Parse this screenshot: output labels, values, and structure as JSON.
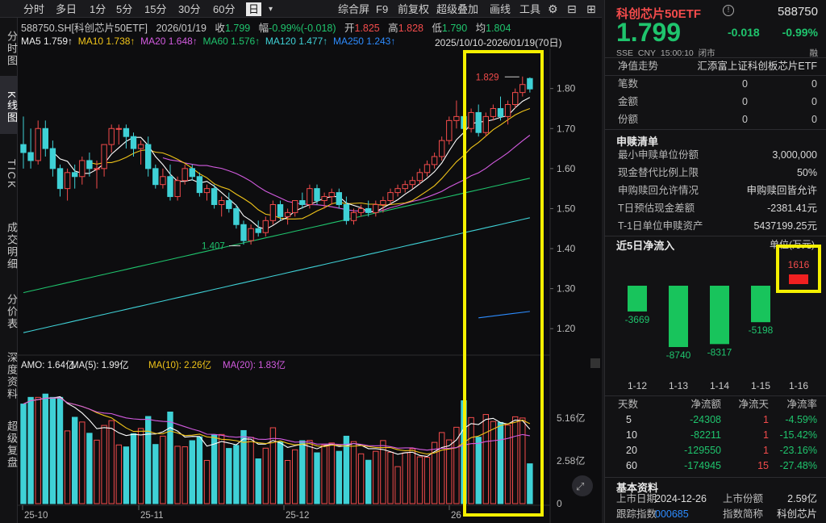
{
  "topbar": {
    "tabs": [
      "分时",
      "多日",
      "1分",
      "5分",
      "15分",
      "30分",
      "60分",
      "日"
    ],
    "active_tab": "日",
    "tools": [
      "综合屏",
      "F9",
      "前复权",
      "超级叠加",
      "画线",
      "工具"
    ]
  },
  "left_tabs": [
    "分时图",
    "K线图",
    "TICK",
    "成交明细",
    "分价表",
    "深度资料",
    "超级复盘"
  ],
  "active_left_tab": "K线图",
  "info": {
    "code": "588750.SH[科创芯片50ETF]",
    "date": "2026/01/19",
    "close_label": "收",
    "close": "1.799",
    "chg_label": "幅",
    "chg": "-0.99%(-0.018)",
    "open_label": "开",
    "open": "1.825",
    "high_label": "高",
    "high": "1.828",
    "low_label": "低",
    "low": "1.790",
    "avg_label": "均",
    "avg": "1.804",
    "range": "2025/10/10-2026/01/19(70日)"
  },
  "ma": {
    "ma5": "MA5 1.759↑",
    "ma10": "MA10 1.738↑",
    "ma20": "MA20 1.648↑",
    "ma60": "MA60 1.576↑",
    "ma120": "MA120 1.477↑",
    "ma250": "MA250 1.243↑"
  },
  "amo": {
    "amo": "AMO: 1.64亿",
    "ma5": "MA(5): 1.99亿",
    "ma10": "MA(10): 2.26亿",
    "ma20": "MA(20): 1.83亿"
  },
  "price_axis": [
    "1.80",
    "1.70",
    "1.60",
    "1.50",
    "1.40",
    "1.30",
    "1.20"
  ],
  "vol_axis": [
    "5.16亿",
    "2.58亿",
    "0"
  ],
  "date_axis": [
    "25-10",
    "25-11",
    "25-12",
    "26"
  ],
  "annotations": {
    "high_marker": "1.829",
    "low_marker": "1.407"
  },
  "colors": {
    "up": "#f24b4b",
    "down": "#3fd1d6",
    "ma5": "#ffffff",
    "ma10": "#f0c419",
    "ma20": "#d35be0",
    "ma60": "#1fc46d",
    "ma120": "#3fd1d6",
    "ma250": "#2d8cff",
    "highlight": "#f5f000"
  },
  "sidebar": {
    "name": "科创芯片50ETF",
    "code": "588750",
    "price": "1.799",
    "change": "-0.018",
    "change_pct": "-0.99%",
    "meta": [
      "SSE",
      "CNY",
      "15:00:10",
      "闭市"
    ],
    "meta_right": "融",
    "nav_trend": "净值走势",
    "fund_name": "汇添富上证科创板芯片ETF",
    "stats": [
      {
        "label": "笔数",
        "v1": "0",
        "v2": "0"
      },
      {
        "label": "金额",
        "v1": "0",
        "v2": "0"
      },
      {
        "label": "份额",
        "v1": "0",
        "v2": "0"
      }
    ],
    "subscribe_title": "申赎清单",
    "subscribe": [
      {
        "label": "最小申赎单位份额",
        "value": "3,000,000"
      },
      {
        "label": "现金替代比例上限",
        "value": "50%"
      },
      {
        "label": "申购赎回允许情况",
        "value": "申购赎回皆允许"
      },
      {
        "label": "T日预估现金差额",
        "value": "-2381.41元"
      },
      {
        "label": "T-1日单位申赎资产",
        "value": "5437199.25元"
      }
    ],
    "flow_title": "近5日净流入",
    "flow_unit": "单位(万元)",
    "flow": [
      {
        "date": "1-12",
        "value": -3669
      },
      {
        "date": "1-13",
        "value": -8740
      },
      {
        "date": "1-14",
        "value": -8317
      },
      {
        "date": "1-15",
        "value": -5198
      },
      {
        "date": "1-16",
        "value": 1616
      }
    ],
    "flow_table_headers": [
      "天数",
      "净流天",
      "净流额",
      "净流率"
    ],
    "flow_table": [
      {
        "days": "5",
        "d": "1",
        "amt": "-24308",
        "rate": "-4.59%"
      },
      {
        "days": "10",
        "d": "1",
        "amt": "-82211",
        "rate": "-15.42%"
      },
      {
        "days": "20",
        "d": "1",
        "amt": "-129550",
        "rate": "-23.16%"
      },
      {
        "days": "60",
        "d": "15",
        "amt": "-174945",
        "rate": "-27.48%"
      }
    ],
    "basic_title": "基本资料",
    "basic": [
      {
        "l1": "上市日期",
        "v1": "2024-12-26",
        "l2": "上市份额",
        "v2": "2.59亿"
      },
      {
        "l1": "跟踪指数",
        "v1": "000685",
        "l2": "指数简称",
        "v2": "科创芯片"
      }
    ]
  },
  "chart_data": {
    "type": "candlestick",
    "x": [
      "25-10",
      "25-11",
      "25-12",
      "26"
    ],
    "price_range": [
      1.15,
      1.88
    ],
    "candles": [
      [
        1.66,
        1.73,
        1.6,
        1.64
      ],
      [
        1.64,
        1.7,
        1.6,
        1.62
      ],
      [
        1.62,
        1.72,
        1.61,
        1.7
      ],
      [
        1.7,
        1.72,
        1.63,
        1.65
      ],
      [
        1.65,
        1.67,
        1.58,
        1.6
      ],
      [
        1.6,
        1.61,
        1.53,
        1.55
      ],
      [
        1.55,
        1.6,
        1.52,
        1.59
      ],
      [
        1.59,
        1.61,
        1.55,
        1.58
      ],
      [
        1.58,
        1.63,
        1.56,
        1.62
      ],
      [
        1.62,
        1.64,
        1.58,
        1.6
      ],
      [
        1.6,
        1.62,
        1.55,
        1.6
      ],
      [
        1.6,
        1.66,
        1.58,
        1.66
      ],
      [
        1.66,
        1.71,
        1.64,
        1.7
      ],
      [
        1.7,
        1.71,
        1.66,
        1.7
      ],
      [
        1.7,
        1.71,
        1.65,
        1.68
      ],
      [
        1.68,
        1.69,
        1.63,
        1.65
      ],
      [
        1.65,
        1.67,
        1.61,
        1.66
      ],
      [
        1.66,
        1.68,
        1.58,
        1.6
      ],
      [
        1.6,
        1.61,
        1.55,
        1.56
      ],
      [
        1.56,
        1.6,
        1.55,
        1.58
      ],
      [
        1.58,
        1.61,
        1.52,
        1.53
      ],
      [
        1.53,
        1.58,
        1.52,
        1.57
      ],
      [
        1.57,
        1.61,
        1.56,
        1.6
      ],
      [
        1.6,
        1.61,
        1.57,
        1.58
      ],
      [
        1.58,
        1.59,
        1.53,
        1.54
      ],
      [
        1.54,
        1.56,
        1.52,
        1.55
      ],
      [
        1.55,
        1.56,
        1.5,
        1.51
      ],
      [
        1.51,
        1.53,
        1.48,
        1.52
      ],
      [
        1.52,
        1.54,
        1.49,
        1.5
      ],
      [
        1.5,
        1.51,
        1.45,
        1.46
      ],
      [
        1.46,
        1.47,
        1.41,
        1.42
      ],
      [
        1.42,
        1.46,
        1.41,
        1.45
      ],
      [
        1.45,
        1.47,
        1.43,
        1.44
      ],
      [
        1.44,
        1.48,
        1.43,
        1.47
      ],
      [
        1.47,
        1.52,
        1.46,
        1.51
      ],
      [
        1.51,
        1.52,
        1.47,
        1.48
      ],
      [
        1.48,
        1.5,
        1.46,
        1.49
      ],
      [
        1.49,
        1.52,
        1.48,
        1.52
      ],
      [
        1.52,
        1.54,
        1.5,
        1.51
      ],
      [
        1.51,
        1.56,
        1.5,
        1.55
      ],
      [
        1.55,
        1.56,
        1.51,
        1.52
      ],
      [
        1.52,
        1.54,
        1.5,
        1.53
      ],
      [
        1.53,
        1.55,
        1.51,
        1.54
      ],
      [
        1.54,
        1.55,
        1.5,
        1.51
      ],
      [
        1.51,
        1.53,
        1.46,
        1.47
      ],
      [
        1.47,
        1.5,
        1.46,
        1.49
      ],
      [
        1.49,
        1.51,
        1.48,
        1.5
      ],
      [
        1.5,
        1.52,
        1.48,
        1.49
      ],
      [
        1.49,
        1.52,
        1.48,
        1.51
      ],
      [
        1.51,
        1.53,
        1.49,
        1.52
      ],
      [
        1.52,
        1.55,
        1.51,
        1.54
      ],
      [
        1.54,
        1.56,
        1.53,
        1.55
      ],
      [
        1.55,
        1.57,
        1.54,
        1.56
      ],
      [
        1.56,
        1.58,
        1.55,
        1.57
      ],
      [
        1.57,
        1.6,
        1.56,
        1.59
      ],
      [
        1.59,
        1.62,
        1.58,
        1.61
      ],
      [
        1.61,
        1.64,
        1.6,
        1.63
      ],
      [
        1.63,
        1.68,
        1.62,
        1.67
      ],
      [
        1.67,
        1.73,
        1.66,
        1.72
      ],
      [
        1.72,
        1.77,
        1.7,
        1.73
      ],
      [
        1.73,
        1.76,
        1.69,
        1.7
      ],
      [
        1.7,
        1.75,
        1.69,
        1.74
      ],
      [
        1.74,
        1.76,
        1.68,
        1.69
      ],
      [
        1.69,
        1.74,
        1.68,
        1.73
      ],
      [
        1.73,
        1.76,
        1.72,
        1.75
      ],
      [
        1.75,
        1.78,
        1.72,
        1.73
      ],
      [
        1.73,
        1.77,
        1.71,
        1.76
      ],
      [
        1.76,
        1.8,
        1.75,
        1.79
      ],
      [
        1.79,
        1.83,
        1.78,
        1.81
      ],
      [
        1.825,
        1.828,
        1.79,
        1.799
      ]
    ],
    "amo_range": [
      0,
      7.0
    ]
  }
}
